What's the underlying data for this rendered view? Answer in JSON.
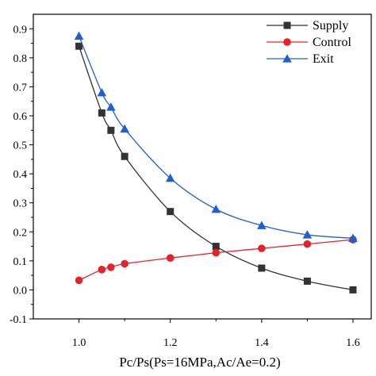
{
  "chart_data": {
    "type": "line",
    "xlabel": "Pc/Ps(Ps=16MPa,Ac/Ae=0.2)",
    "ylabel": "",
    "xlim": [
      0.9,
      1.64
    ],
    "ylim": [
      -0.1,
      0.95
    ],
    "xticks": [
      1.0,
      1.2,
      1.4,
      1.6
    ],
    "xtick_labels": [
      "1.0",
      "1.2",
      "1.4",
      "1.6"
    ],
    "yticks": [
      -0.1,
      0.0,
      0.1,
      0.2,
      0.3,
      0.4,
      0.5,
      0.6,
      0.7,
      0.8,
      0.9
    ],
    "ytick_labels": [
      "-0.1",
      "0.0",
      "0.1",
      "0.2",
      "0.3",
      "0.4",
      "0.5",
      "0.6",
      "0.7",
      "0.8",
      "0.9"
    ],
    "grid": false,
    "legend_position": "top-right",
    "series": [
      {
        "name": "Supply",
        "color": "#333333",
        "marker": "square",
        "x": [
          1.0,
          1.05,
          1.07,
          1.1,
          1.2,
          1.3,
          1.4,
          1.5,
          1.6
        ],
        "y": [
          0.84,
          0.61,
          0.55,
          0.46,
          0.27,
          0.15,
          0.075,
          0.03,
          0.0
        ]
      },
      {
        "name": "Control",
        "color": "#e8202a",
        "marker": "circle",
        "x": [
          1.0,
          1.05,
          1.07,
          1.1,
          1.2,
          1.3,
          1.4,
          1.5,
          1.6
        ],
        "y": [
          0.033,
          0.07,
          0.078,
          0.09,
          0.11,
          0.128,
          0.143,
          0.158,
          0.173
        ]
      },
      {
        "name": "Exit",
        "color": "#1f5fd6",
        "marker": "triangle",
        "x": [
          1.0,
          1.05,
          1.07,
          1.1,
          1.2,
          1.3,
          1.4,
          1.5,
          1.6
        ],
        "y": [
          0.875,
          0.68,
          0.63,
          0.555,
          0.385,
          0.278,
          0.222,
          0.19,
          0.178
        ]
      }
    ]
  }
}
